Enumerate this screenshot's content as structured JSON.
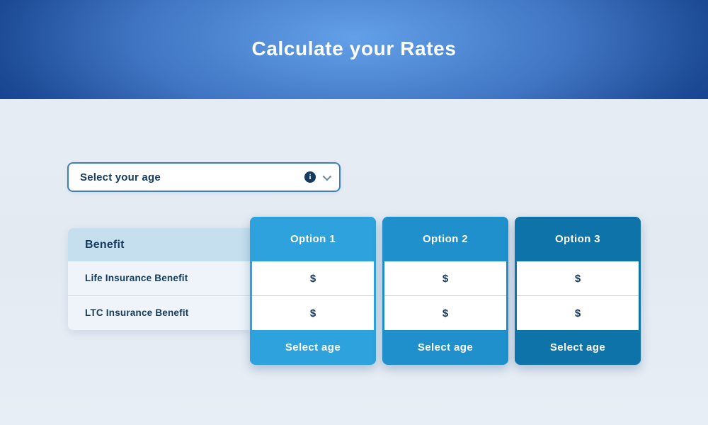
{
  "banner": {
    "title": "Calculate your Rates"
  },
  "age_selector": {
    "label": "Select your age",
    "icons": [
      "info-icon",
      "chevron-down-icon"
    ]
  },
  "table": {
    "benefit_header": "Benefit",
    "rows": [
      {
        "label": "Life Insurance Benefit"
      },
      {
        "label": "LTC Insurance Benefit"
      }
    ],
    "options": [
      {
        "label": "Option 1",
        "values": [
          "$",
          "$"
        ],
        "button": "Select age",
        "color": "#2ea2dd"
      },
      {
        "label": "Option 2",
        "values": [
          "$",
          "$"
        ],
        "button": "Select age",
        "color": "#1f90cc"
      },
      {
        "label": "Option 3",
        "values": [
          "$",
          "$"
        ],
        "button": "Select age",
        "color": "#0e73a9"
      }
    ]
  },
  "colors": {
    "banner_center": "#63a0e8",
    "banner_edge": "#143e89",
    "page_background": "#e7edf4",
    "dropdown_border": "#3d7dc2",
    "text_navy": "#16395e",
    "benefit_header_bg": "#c5dfee",
    "benefit_rows_bg": "#eef4fa",
    "row_divider": "#cfdfec"
  }
}
